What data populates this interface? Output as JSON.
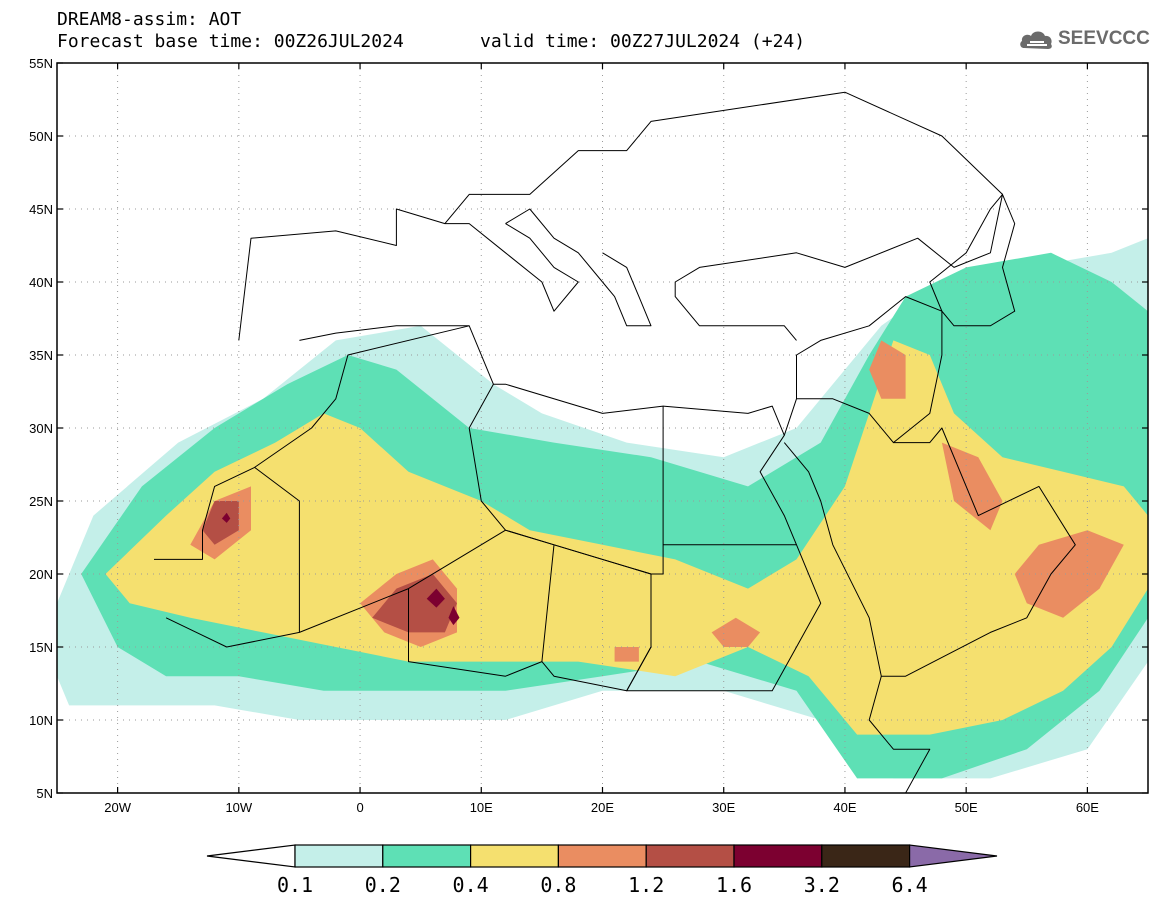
{
  "header": {
    "title_line1": "DREAM8-assim: AOT",
    "title_line2": "Forecast base time: 00Z26JUL2024",
    "valid_time": "valid time: 00Z27JUL2024 (+24)",
    "logo_text": "SEEVCCC"
  },
  "map": {
    "lon_range": [
      -25,
      65
    ],
    "lat_range": [
      5,
      55
    ],
    "lat_ticks": [
      {
        "value": 55,
        "label": "55N"
      },
      {
        "value": 50,
        "label": "50N"
      },
      {
        "value": 45,
        "label": "45N"
      },
      {
        "value": 40,
        "label": "40N"
      },
      {
        "value": 35,
        "label": "35N"
      },
      {
        "value": 30,
        "label": "30N"
      },
      {
        "value": 25,
        "label": "25N"
      },
      {
        "value": 20,
        "label": "20N"
      },
      {
        "value": 15,
        "label": "15N"
      },
      {
        "value": 10,
        "label": "10N"
      },
      {
        "value": 5,
        "label": "5N"
      }
    ],
    "lon_ticks": [
      {
        "value": -20,
        "label": "20W"
      },
      {
        "value": -10,
        "label": "10W"
      },
      {
        "value": 0,
        "label": "0"
      },
      {
        "value": 10,
        "label": "10E"
      },
      {
        "value": 20,
        "label": "20E"
      },
      {
        "value": 30,
        "label": "30E"
      },
      {
        "value": 40,
        "label": "40E"
      },
      {
        "value": 50,
        "label": "50E"
      },
      {
        "value": 60,
        "label": "60E"
      }
    ],
    "grid": "dotted"
  },
  "colorbar": {
    "levels": [
      "0.1",
      "0.2",
      "0.4",
      "0.8",
      "1.2",
      "1.6",
      "3.2",
      "6.4"
    ],
    "colors": [
      "#c4efe9",
      "#5ee0b5",
      "#f5e06f",
      "#ea8d61",
      "#b44f45",
      "#7c0030",
      "#3a2617",
      "#8a6aa8"
    ],
    "below_color": "#ffffff"
  },
  "aot_regions": [
    {
      "level": 0,
      "color": "#c4efe9",
      "points": [
        [
          -25,
          18
        ],
        [
          -22,
          24
        ],
        [
          -15,
          29
        ],
        [
          -8,
          32
        ],
        [
          -2,
          36
        ],
        [
          5,
          37
        ],
        [
          11,
          33
        ],
        [
          15,
          31
        ],
        [
          22,
          29
        ],
        [
          30,
          28
        ],
        [
          36,
          30
        ],
        [
          40,
          34
        ],
        [
          43,
          37
        ],
        [
          48,
          40
        ],
        [
          55,
          41
        ],
        [
          62,
          42
        ],
        [
          65,
          43
        ],
        [
          65,
          14
        ],
        [
          60,
          8
        ],
        [
          52,
          6
        ],
        [
          44,
          6
        ],
        [
          38,
          10
        ],
        [
          30,
          12
        ],
        [
          20,
          12
        ],
        [
          12,
          10
        ],
        [
          5,
          10
        ],
        [
          -5,
          10
        ],
        [
          -12,
          11
        ],
        [
          -18,
          11
        ],
        [
          -24,
          11
        ],
        [
          -25,
          13
        ]
      ]
    },
    {
      "level": 1,
      "color": "#5ee0b5",
      "points": [
        [
          -23,
          20
        ],
        [
          -18,
          26
        ],
        [
          -12,
          30
        ],
        [
          -6,
          33
        ],
        [
          -1,
          35
        ],
        [
          3,
          34
        ],
        [
          9,
          30
        ],
        [
          16,
          29
        ],
        [
          24,
          28
        ],
        [
          32,
          26
        ],
        [
          38,
          29
        ],
        [
          42,
          35
        ],
        [
          45,
          39
        ],
        [
          50,
          41
        ],
        [
          57,
          42
        ],
        [
          62,
          40
        ],
        [
          65,
          38
        ],
        [
          65,
          17
        ],
        [
          61,
          12
        ],
        [
          55,
          8
        ],
        [
          48,
          6
        ],
        [
          41,
          6
        ],
        [
          36,
          12
        ],
        [
          28,
          14
        ],
        [
          20,
          13
        ],
        [
          12,
          12
        ],
        [
          5,
          12
        ],
        [
          -3,
          12
        ],
        [
          -10,
          13
        ],
        [
          -16,
          13
        ],
        [
          -20,
          15
        ]
      ]
    },
    {
      "level": 2,
      "color": "#f5e06f",
      "points": [
        [
          -21,
          20
        ],
        [
          -16,
          24
        ],
        [
          -12,
          27
        ],
        [
          -7,
          29
        ],
        [
          -3,
          31
        ],
        [
          0,
          30
        ],
        [
          4,
          27
        ],
        [
          10,
          25
        ],
        [
          14,
          23
        ],
        [
          20,
          22
        ],
        [
          26,
          21
        ],
        [
          32,
          19
        ],
        [
          36,
          21
        ],
        [
          40,
          26
        ],
        [
          42,
          31
        ],
        [
          44,
          36
        ],
        [
          47,
          35
        ],
        [
          49,
          31
        ],
        [
          53,
          28
        ],
        [
          58,
          27
        ],
        [
          63,
          26
        ],
        [
          65,
          24
        ],
        [
          65,
          19
        ],
        [
          62,
          15
        ],
        [
          58,
          12
        ],
        [
          53,
          10
        ],
        [
          47,
          9
        ],
        [
          41,
          9
        ],
        [
          37,
          13
        ],
        [
          32,
          15
        ],
        [
          26,
          13
        ],
        [
          18,
          14
        ],
        [
          10,
          14
        ],
        [
          4,
          14
        ],
        [
          -2,
          15
        ],
        [
          -8,
          16
        ],
        [
          -14,
          17
        ],
        [
          -19,
          18
        ]
      ]
    },
    {
      "level": 3,
      "color": "#ea8d61",
      "points": [
        [
          -14,
          22
        ],
        [
          -12,
          25
        ],
        [
          -9,
          26
        ],
        [
          -9,
          23
        ],
        [
          -12,
          21
        ]
      ]
    },
    {
      "level": 3,
      "color": "#ea8d61",
      "points": [
        [
          0,
          18
        ],
        [
          3,
          20
        ],
        [
          6,
          21
        ],
        [
          8,
          19
        ],
        [
          8,
          16
        ],
        [
          5,
          15
        ],
        [
          2,
          16
        ]
      ]
    },
    {
      "level": 3,
      "color": "#ea8d61",
      "points": [
        [
          42,
          34
        ],
        [
          43,
          36
        ],
        [
          45,
          35
        ],
        [
          45,
          32
        ],
        [
          43,
          32
        ]
      ]
    },
    {
      "level": 3,
      "color": "#ea8d61",
      "points": [
        [
          48,
          29
        ],
        [
          49,
          25
        ],
        [
          52,
          23
        ],
        [
          53,
          25
        ],
        [
          51,
          28
        ]
      ]
    },
    {
      "level": 3,
      "color": "#ea8d61",
      "points": [
        [
          54,
          20
        ],
        [
          55,
          18
        ],
        [
          58,
          17
        ],
        [
          61,
          19
        ],
        [
          63,
          22
        ],
        [
          60,
          23
        ],
        [
          56,
          22
        ]
      ]
    },
    {
      "level": 3,
      "color": "#ea8d61",
      "points": [
        [
          30,
          15
        ],
        [
          32,
          15
        ],
        [
          33,
          16
        ],
        [
          31,
          17
        ],
        [
          29,
          16
        ]
      ]
    },
    {
      "level": 3,
      "color": "#ea8d61",
      "points": [
        [
          21,
          15
        ],
        [
          23,
          15
        ],
        [
          23,
          14
        ],
        [
          21,
          14
        ]
      ]
    },
    {
      "level": 4,
      "color": "#b44f45",
      "points": [
        [
          1,
          17
        ],
        [
          3,
          19
        ],
        [
          6,
          20
        ],
        [
          8,
          18
        ],
        [
          7,
          16
        ],
        [
          4,
          16
        ]
      ]
    },
    {
      "level": 4,
      "color": "#b44f45",
      "points": [
        [
          -13,
          23
        ],
        [
          -12,
          25
        ],
        [
          -10,
          25
        ],
        [
          -10,
          23
        ],
        [
          -12,
          22
        ]
      ]
    },
    {
      "level": 5,
      "color": "#7c0030",
      "points": [
        [
          5.5,
          18.3
        ],
        [
          6.3,
          19
        ],
        [
          7,
          18.3
        ],
        [
          6.3,
          17.7
        ]
      ]
    },
    {
      "level": 5,
      "color": "#7c0030",
      "points": [
        [
          7.3,
          17
        ],
        [
          7.7,
          17.8
        ],
        [
          8.2,
          17
        ],
        [
          7.7,
          16.5
        ]
      ]
    },
    {
      "level": 5,
      "color": "#7c0030",
      "points": [
        [
          -11.4,
          23.8
        ],
        [
          -11,
          24.2
        ],
        [
          -10.7,
          23.8
        ],
        [
          -11,
          23.5
        ]
      ]
    }
  ],
  "borders": [
    [
      [
        -17,
        21
      ],
      [
        -13,
        21
      ],
      [
        -13,
        23
      ],
      [
        -12,
        26
      ],
      [
        -8.7,
        27.3
      ],
      [
        -5,
        25
      ],
      [
        -5,
        16
      ],
      [
        -11,
        15
      ],
      [
        -16,
        17
      ]
    ],
    [
      [
        -8.7,
        27.3
      ],
      [
        -4,
        30
      ],
      [
        -2,
        32
      ],
      [
        -1,
        35
      ],
      [
        9,
        37
      ],
      [
        11,
        33
      ],
      [
        9,
        30
      ],
      [
        10,
        25
      ],
      [
        12,
        23
      ],
      [
        4,
        19
      ],
      [
        -5,
        16
      ]
    ],
    [
      [
        4,
        19
      ],
      [
        4,
        14
      ],
      [
        12,
        13
      ],
      [
        15,
        14
      ],
      [
        16,
        22
      ],
      [
        12,
        23
      ]
    ],
    [
      [
        16,
        22
      ],
      [
        24,
        20
      ],
      [
        24,
        15
      ],
      [
        22,
        12
      ],
      [
        16,
        13
      ],
      [
        15,
        14
      ]
    ],
    [
      [
        12,
        23
      ],
      [
        16,
        22
      ],
      [
        24,
        20
      ],
      [
        25,
        20
      ],
      [
        25,
        22
      ],
      [
        25,
        31.5
      ],
      [
        20,
        31
      ],
      [
        12,
        33
      ],
      [
        11,
        33
      ]
    ],
    [
      [
        25,
        22
      ],
      [
        36,
        22
      ],
      [
        38,
        18
      ],
      [
        36,
        15
      ],
      [
        34,
        12
      ],
      [
        22,
        12
      ],
      [
        24,
        15
      ],
      [
        24,
        20
      ]
    ],
    [
      [
        25,
        31.5
      ],
      [
        32,
        31
      ],
      [
        34,
        31.5
      ],
      [
        35,
        29.5
      ],
      [
        33,
        27
      ],
      [
        35,
        24
      ],
      [
        36,
        22
      ]
    ],
    [
      [
        35,
        29.5
      ],
      [
        36,
        32
      ],
      [
        36,
        35
      ],
      [
        38,
        36
      ],
      [
        42,
        37
      ],
      [
        45,
        39
      ],
      [
        48,
        38
      ],
      [
        48,
        35
      ],
      [
        47,
        31
      ],
      [
        44,
        29
      ],
      [
        42,
        31
      ],
      [
        39,
        32
      ],
      [
        36,
        32
      ]
    ],
    [
      [
        35,
        29
      ],
      [
        37,
        27
      ],
      [
        38,
        25
      ],
      [
        39,
        22
      ],
      [
        42,
        17
      ],
      [
        43,
        13
      ],
      [
        45,
        13
      ],
      [
        52,
        16
      ],
      [
        55,
        17
      ],
      [
        57,
        20
      ],
      [
        59,
        22
      ],
      [
        56,
        26
      ],
      [
        51,
        24
      ],
      [
        50,
        26
      ],
      [
        48,
        30
      ],
      [
        47,
        29
      ],
      [
        44,
        29
      ]
    ],
    [
      [
        43,
        13
      ],
      [
        42,
        10
      ],
      [
        44,
        8
      ],
      [
        47,
        8
      ],
      [
        45,
        5
      ]
    ],
    [
      [
        -10,
        36
      ],
      [
        -9,
        43
      ],
      [
        -2,
        43.5
      ],
      [
        3,
        42.5
      ],
      [
        3,
        45
      ],
      [
        7,
        44
      ],
      [
        9,
        46
      ],
      [
        14,
        46
      ],
      [
        18,
        49
      ],
      [
        22,
        49
      ],
      [
        24,
        51
      ],
      [
        32,
        52
      ],
      [
        40,
        53
      ],
      [
        48,
        50
      ],
      [
        53,
        46
      ],
      [
        52,
        42
      ],
      [
        49,
        41
      ],
      [
        46,
        43
      ],
      [
        40,
        41
      ],
      [
        36,
        42
      ],
      [
        28,
        41
      ],
      [
        26,
        40
      ],
      [
        26,
        39
      ],
      [
        28,
        37
      ],
      [
        35,
        37
      ],
      [
        36,
        36
      ]
    ],
    [
      [
        -5,
        36
      ],
      [
        -2,
        36.5
      ],
      [
        3,
        37
      ],
      [
        9,
        37
      ]
    ],
    [
      [
        20,
        40
      ],
      [
        21,
        39
      ],
      [
        22,
        37
      ],
      [
        24,
        37
      ],
      [
        23,
        39
      ],
      [
        22,
        41
      ],
      [
        20,
        42
      ]
    ],
    [
      [
        12,
        44
      ],
      [
        14,
        45
      ],
      [
        16,
        43
      ],
      [
        18,
        42
      ],
      [
        20,
        40
      ]
    ],
    [
      [
        7,
        44
      ],
      [
        9,
        44
      ],
      [
        12,
        42
      ],
      [
        15,
        40
      ],
      [
        16,
        38
      ],
      [
        18,
        40
      ],
      [
        16,
        41
      ],
      [
        14,
        43
      ],
      [
        12,
        44
      ]
    ]
  ],
  "lakes": [
    [
      [
        47,
        40
      ],
      [
        50,
        42
      ],
      [
        52,
        45
      ],
      [
        53,
        46
      ],
      [
        54,
        44
      ],
      [
        53,
        41
      ],
      [
        54,
        38
      ],
      [
        52,
        37
      ],
      [
        49,
        37
      ],
      [
        48,
        38
      ]
    ]
  ]
}
